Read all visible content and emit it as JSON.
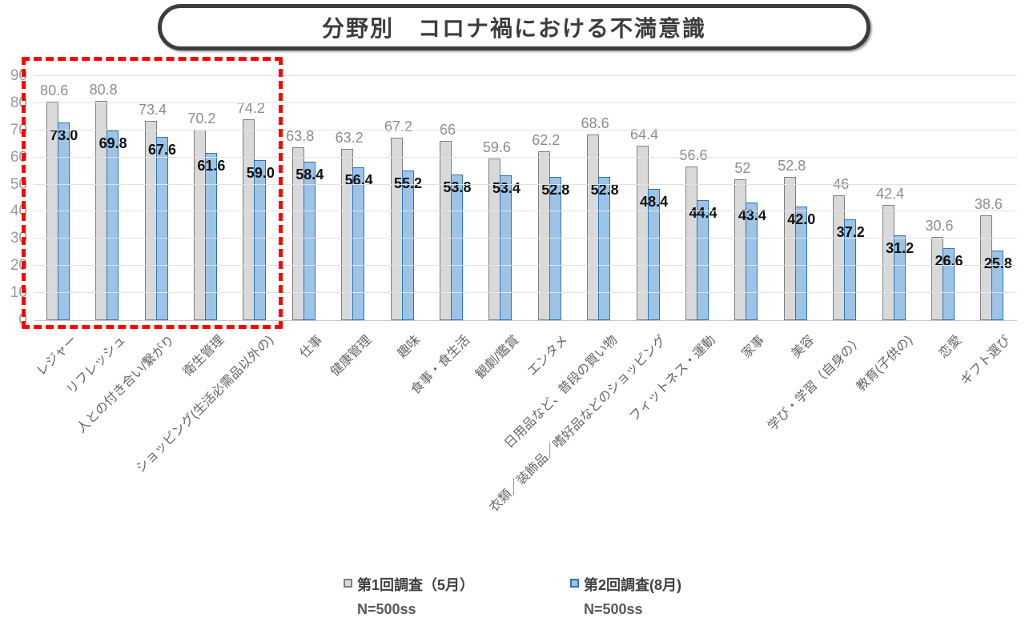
{
  "chart_data": {
    "type": "bar",
    "title": "分野別　コロナ禍における不満意識",
    "categories": [
      "レジャー",
      "リフレッシュ",
      "人との付き合い/繋がり",
      "衛生管理",
      "ショッピング(生活必需品以外の)",
      "仕事",
      "健康管理",
      "趣味",
      "食事・食生活",
      "観劇/鑑賞",
      "エンタメ",
      "日用品など、普段の買い物",
      "衣類／装飾品／嗜好品などのショッピング",
      "フィットネス・運動",
      "家事",
      "美容",
      "学び・学習（自身の）",
      "教育(子供の)",
      "恋愛",
      "ギフト選び"
    ],
    "series": [
      {
        "name": "第1回調査（5月）",
        "sample": "N=500ss",
        "fill": "#d9d9d9",
        "stroke": "#7f7f7f",
        "values": [
          80.6,
          80.8,
          73.4,
          70.2,
          74.2,
          63.8,
          63.2,
          67.2,
          66,
          59.6,
          62.2,
          68.6,
          64.4,
          56.6,
          52,
          52.8,
          46,
          42.4,
          30.6,
          38.6
        ],
        "labels": [
          "80.6",
          "80.8",
          "73.4",
          "70.2",
          "74.2",
          "63.8",
          "63.2",
          "67.2",
          "66",
          "59.6",
          "62.2",
          "68.6",
          "64.4",
          "56.6",
          "52",
          "52.8",
          "46",
          "42.4",
          "30.6",
          "38.6"
        ]
      },
      {
        "name": "第2回調査(8月)",
        "sample": "N=500ss",
        "fill": "#9dc3e6",
        "stroke": "#2e75b6",
        "values": [
          73.0,
          69.8,
          67.6,
          61.6,
          59.0,
          58.4,
          56.4,
          55.2,
          53.8,
          53.4,
          52.8,
          52.8,
          48.4,
          44.4,
          43.4,
          42.0,
          37.2,
          31.2,
          26.6,
          25.8
        ],
        "labels": [
          "73.0",
          "69.8",
          "67.6",
          "61.6",
          "59.0",
          "58.4",
          "56.4",
          "55.2",
          "53.8",
          "53.4",
          "52.8",
          "52.8",
          "48.4",
          "44.4",
          "43.4",
          "42.0",
          "37.2",
          "31.2",
          "26.6",
          "25.8"
        ]
      }
    ],
    "ylim": [
      0,
      90
    ],
    "yticks": [
      0,
      10,
      20,
      30,
      40,
      50,
      60,
      70,
      80,
      90
    ],
    "grid": true,
    "legend_position": "bottom",
    "annotation": {
      "highlight_box_color": "#ff0000",
      "highlight_box_style": "dashed",
      "highlight_covers_first_n_categories": 5
    }
  }
}
